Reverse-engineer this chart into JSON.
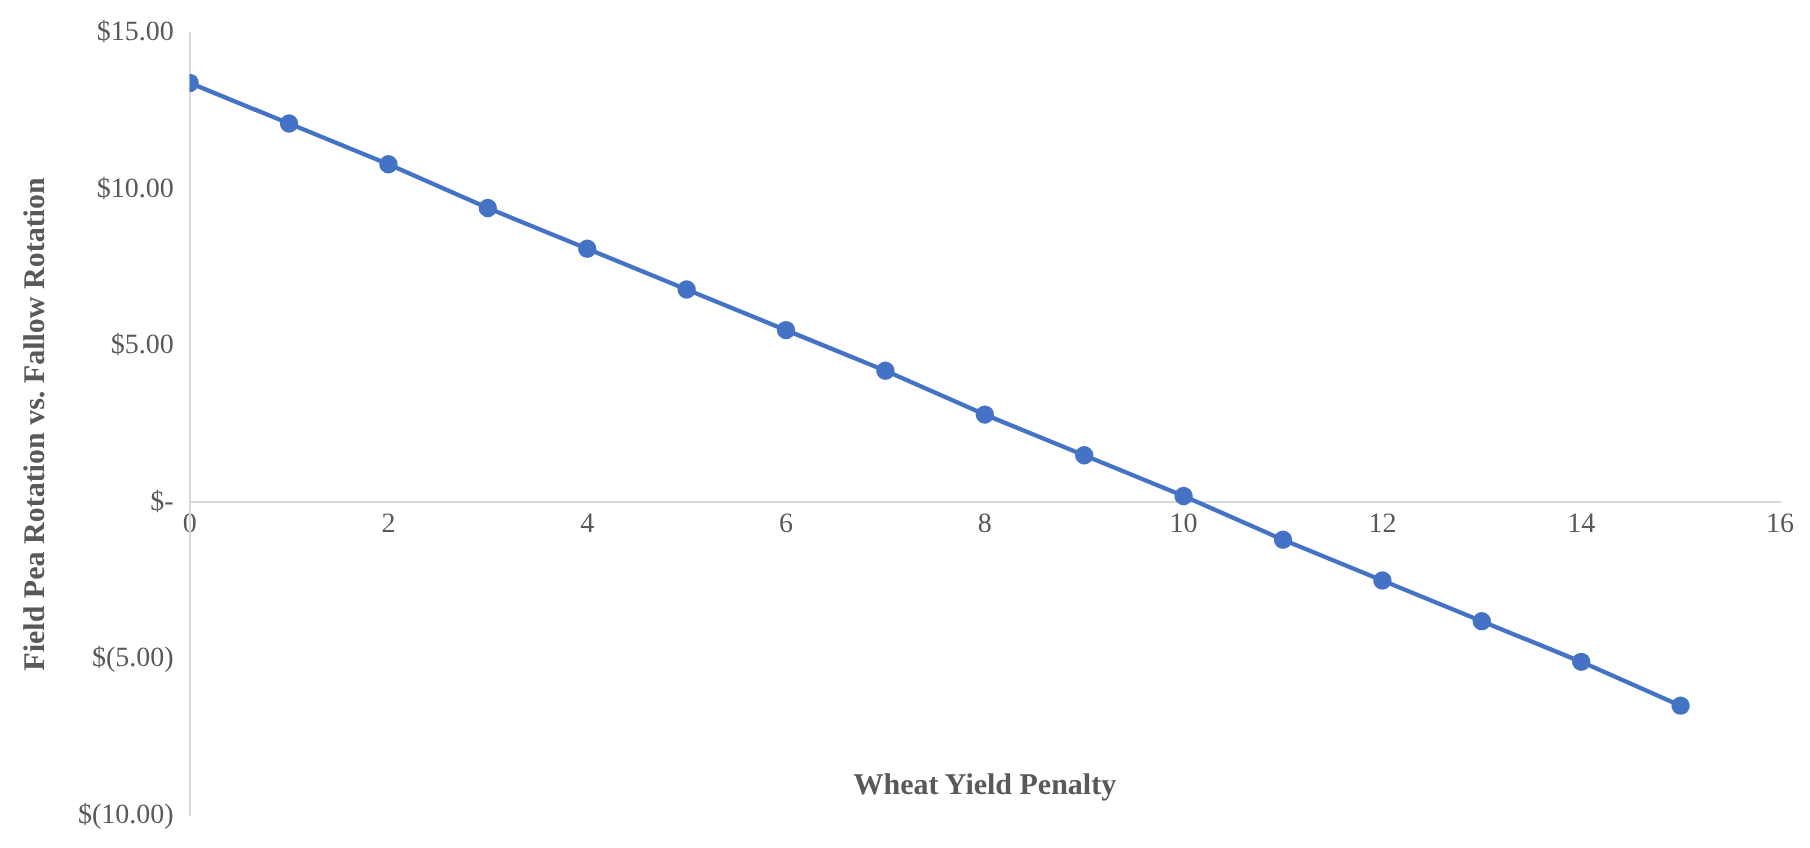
{
  "chart_data": {
    "type": "line",
    "xlabel": "Wheat Yield Penalty",
    "ylabel": "Field Pea Rotation vs. Fallow Rotation",
    "x": [
      0,
      1,
      2,
      3,
      4,
      5,
      6,
      7,
      8,
      9,
      10,
      11,
      12,
      13,
      14,
      15
    ],
    "series": [
      {
        "color": "#4472c4",
        "values": [
          13.4,
          12.1,
          10.8,
          9.4,
          8.1,
          6.8,
          5.5,
          4.2,
          2.8,
          1.5,
          0.2,
          -1.2,
          -2.5,
          -3.8,
          -5.1,
          -6.5
        ]
      }
    ],
    "xlim": [
      0,
      16
    ],
    "xticks": [
      0,
      2,
      4,
      6,
      8,
      10,
      12,
      14,
      16
    ],
    "ylim": [
      -10,
      15
    ],
    "yticks": [
      {
        "value": -10,
        "label": "$(10.00)"
      },
      {
        "value": -5,
        "label": "$(5.00)"
      },
      {
        "value": 0,
        "label": "$-"
      },
      {
        "value": 5,
        "label": "$5.00"
      },
      {
        "value": 10,
        "label": "$10.00"
      },
      {
        "value": 15,
        "label": "$15.00"
      }
    ],
    "grid": false,
    "legend": false,
    "marker": "circle",
    "line_style": "solid"
  }
}
